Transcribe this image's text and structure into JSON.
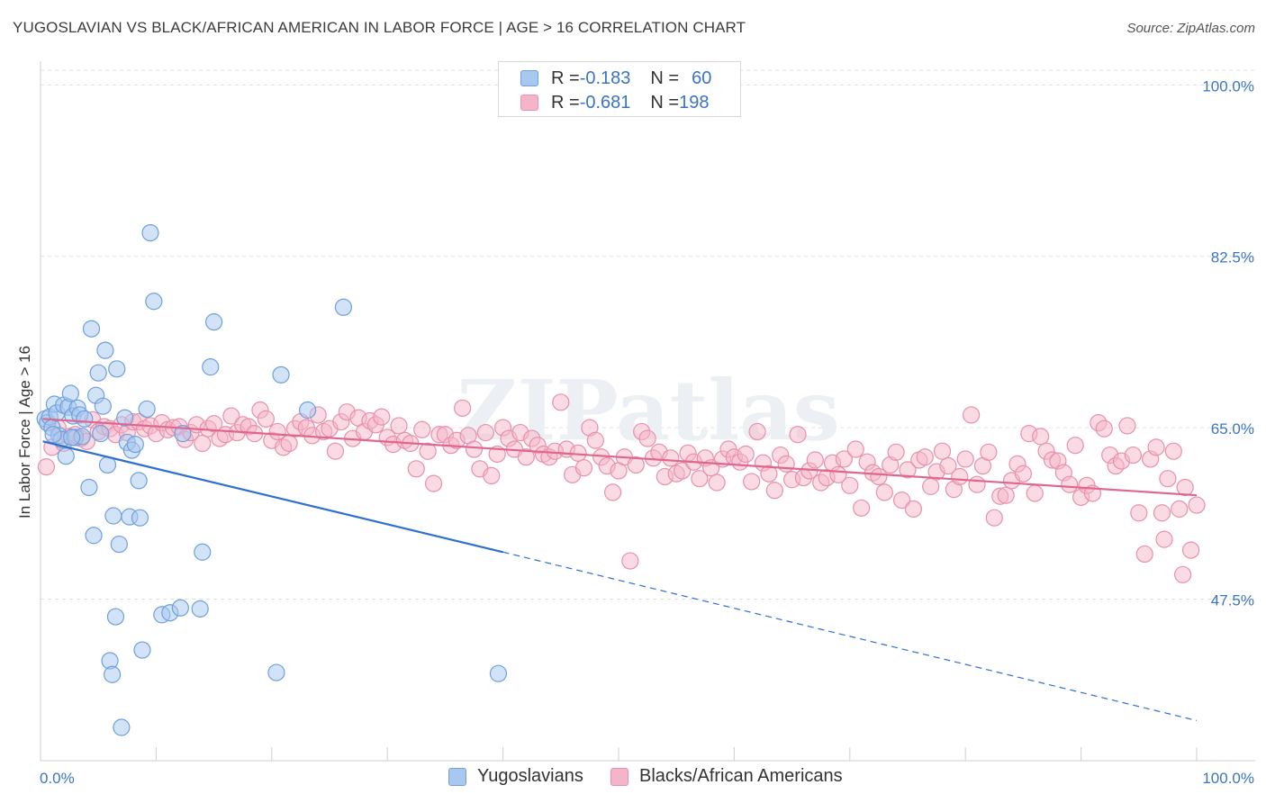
{
  "title": "YUGOSLAVIAN VS BLACK/AFRICAN AMERICAN IN LABOR FORCE | AGE > 16 CORRELATION CHART",
  "source": "Source: ZipAtlas.com",
  "watermark": "ZIPatlas",
  "legend_box": {
    "rows": [
      {
        "r_label": "R = ",
        "r_value": "-0.183",
        "n_label": "N = ",
        "n_value": "60",
        "color": "#a8c8ef"
      },
      {
        "r_label": "R = ",
        "r_value": "-0.681",
        "n_label": "N = ",
        "n_value": "198",
        "color": "#f5b5c8"
      }
    ]
  },
  "bottom_legend": [
    {
      "label": "Yugoslavians",
      "color": "#a8c8ef"
    },
    {
      "label": "Blacks/African Americans",
      "color": "#f5b5c8"
    }
  ],
  "colors": {
    "blue_fill": "#a8c8ef",
    "blue_stroke": "#6ea0dc",
    "blue_line": "#2e6fd0",
    "pink_fill": "#f5b5c8",
    "pink_stroke": "#e890ad",
    "pink_line": "#e0668f",
    "tick_label": "#3a74c4",
    "grid": "#e2e2e2"
  },
  "chart_data": {
    "type": "scatter",
    "title": "YUGOSLAVIAN VS BLACK/AFRICAN AMERICAN IN LABOR FORCE | AGE > 16 CORRELATION CHART",
    "xlabel": "",
    "ylabel": "In Labor Force | Age > 16",
    "xlim": [
      0,
      100
    ],
    "ylim": [
      31,
      101.5
    ],
    "x_tick_labels": [
      "0.0%",
      "100.0%"
    ],
    "y_ticks": [
      47.5,
      65.0,
      82.5,
      100.0
    ],
    "y_tick_labels": [
      "47.5%",
      "65.0%",
      "82.5%",
      "100.0%"
    ],
    "grid": true,
    "legend_position": "top-center",
    "series": [
      {
        "name": "Yugoslavians",
        "r": -0.183,
        "n": 60,
        "trend": {
          "x0": 0.2,
          "y0": 63.6,
          "x1_solid": 40,
          "y1_solid": 52.3,
          "x1_dashed": 100,
          "y1_dashed": 35.1
        },
        "points": [
          [
            0.4,
            65.9
          ],
          [
            0.6,
            65.5
          ],
          [
            0.8,
            66.1
          ],
          [
            1.0,
            65.0
          ],
          [
            1.2,
            67.4
          ],
          [
            1.4,
            66.5
          ],
          [
            1.6,
            64.2
          ],
          [
            1.8,
            63.8
          ],
          [
            2.0,
            67.3
          ],
          [
            2.2,
            62.1
          ],
          [
            2.4,
            67.1
          ],
          [
            2.6,
            68.5
          ],
          [
            2.8,
            66.2
          ],
          [
            3.0,
            64.0
          ],
          [
            3.2,
            67.0
          ],
          [
            3.4,
            66.3
          ],
          [
            3.6,
            64.1
          ],
          [
            3.8,
            65.9
          ],
          [
            4.2,
            58.9
          ],
          [
            4.4,
            75.1
          ],
          [
            4.6,
            54.0
          ],
          [
            4.8,
            68.3
          ],
          [
            5.0,
            70.6
          ],
          [
            5.2,
            64.4
          ],
          [
            5.4,
            67.2
          ],
          [
            5.6,
            72.9
          ],
          [
            5.8,
            61.2
          ],
          [
            6.0,
            41.2
          ],
          [
            6.2,
            39.8
          ],
          [
            6.3,
            56.0
          ],
          [
            6.5,
            45.7
          ],
          [
            6.6,
            71.0
          ],
          [
            6.8,
            53.1
          ],
          [
            7.0,
            34.4
          ],
          [
            7.3,
            66.0
          ],
          [
            7.5,
            63.5
          ],
          [
            7.7,
            55.9
          ],
          [
            7.9,
            62.7
          ],
          [
            8.2,
            63.3
          ],
          [
            8.5,
            59.6
          ],
          [
            8.6,
            55.8
          ],
          [
            8.8,
            42.3
          ],
          [
            9.2,
            66.9
          ],
          [
            9.5,
            84.9
          ],
          [
            9.8,
            77.9
          ],
          [
            10.5,
            45.9
          ],
          [
            11.2,
            46.1
          ],
          [
            12.1,
            46.6
          ],
          [
            12.3,
            64.4
          ],
          [
            13.8,
            46.5
          ],
          [
            14.0,
            52.3
          ],
          [
            14.7,
            71.2
          ],
          [
            15.0,
            75.8
          ],
          [
            20.4,
            40.0
          ],
          [
            20.8,
            70.4
          ],
          [
            23.1,
            66.8
          ],
          [
            26.2,
            77.3
          ],
          [
            39.6,
            39.9
          ],
          [
            1.1,
            64.3
          ],
          [
            2.7,
            64.0
          ]
        ]
      },
      {
        "name": "Blacks/African Americans",
        "r": -0.681,
        "n": 198,
        "trend": {
          "x0": 0.2,
          "y0": 65.9,
          "x1": 100,
          "y1": 58.1
        },
        "points": [
          [
            0.5,
            61.0
          ],
          [
            1.0,
            63.0
          ],
          [
            1.5,
            65.0
          ],
          [
            2.0,
            63.4
          ],
          [
            2.5,
            64.1
          ],
          [
            3.0,
            64.3
          ],
          [
            3.5,
            63.9
          ],
          [
            4.0,
            63.6
          ],
          [
            4.5,
            65.8
          ],
          [
            5.0,
            64.6
          ],
          [
            5.5,
            65.1
          ],
          [
            6.0,
            64.9
          ],
          [
            6.5,
            64.3
          ],
          [
            7.0,
            65.3
          ],
          [
            7.5,
            64.5
          ],
          [
            8.0,
            65.6
          ],
          [
            8.5,
            65.6
          ],
          [
            9.0,
            64.9
          ],
          [
            9.5,
            65.2
          ],
          [
            10.0,
            64.4
          ],
          [
            10.5,
            65.5
          ],
          [
            11.0,
            64.8
          ],
          [
            11.5,
            65.0
          ],
          [
            12.0,
            65.1
          ],
          [
            12.5,
            63.8
          ],
          [
            13.0,
            64.5
          ],
          [
            13.5,
            65.3
          ],
          [
            14.0,
            63.4
          ],
          [
            14.5,
            64.9
          ],
          [
            15.0,
            65.4
          ],
          [
            15.5,
            63.9
          ],
          [
            16.0,
            64.3
          ],
          [
            16.5,
            66.2
          ],
          [
            17.0,
            64.5
          ],
          [
            17.5,
            65.3
          ],
          [
            18.0,
            65.1
          ],
          [
            18.5,
            64.4
          ],
          [
            19.0,
            66.8
          ],
          [
            19.5,
            65.9
          ],
          [
            20.0,
            63.7
          ],
          [
            20.5,
            64.6
          ],
          [
            21.0,
            63.0
          ],
          [
            21.5,
            63.4
          ],
          [
            22.0,
            64.9
          ],
          [
            22.5,
            65.6
          ],
          [
            23.0,
            65.0
          ],
          [
            23.5,
            64.2
          ],
          [
            24.0,
            66.3
          ],
          [
            24.5,
            64.6
          ],
          [
            25.0,
            64.9
          ],
          [
            25.5,
            62.6
          ],
          [
            26.0,
            65.6
          ],
          [
            26.5,
            66.6
          ],
          [
            27.0,
            63.9
          ],
          [
            27.5,
            66.0
          ],
          [
            28.0,
            64.6
          ],
          [
            28.5,
            65.7
          ],
          [
            29.0,
            65.3
          ],
          [
            29.5,
            66.1
          ],
          [
            30.0,
            64.0
          ],
          [
            30.5,
            63.3
          ],
          [
            31.0,
            65.2
          ],
          [
            31.5,
            63.7
          ],
          [
            32.0,
            63.4
          ],
          [
            32.5,
            60.8
          ],
          [
            33.0,
            64.8
          ],
          [
            33.5,
            62.6
          ],
          [
            34.0,
            59.3
          ],
          [
            34.5,
            64.3
          ],
          [
            35.0,
            64.3
          ],
          [
            35.5,
            63.2
          ],
          [
            36.0,
            63.7
          ],
          [
            36.5,
            67.0
          ],
          [
            37.0,
            64.2
          ],
          [
            37.5,
            62.8
          ],
          [
            38.0,
            60.8
          ],
          [
            38.5,
            64.5
          ],
          [
            39.0,
            60.1
          ],
          [
            39.5,
            62.3
          ],
          [
            40.0,
            65.0
          ],
          [
            40.5,
            63.9
          ],
          [
            41.0,
            62.8
          ],
          [
            41.5,
            64.5
          ],
          [
            42.0,
            62.0
          ],
          [
            42.5,
            63.9
          ],
          [
            43.0,
            63.2
          ],
          [
            43.5,
            62.3
          ],
          [
            44.0,
            62.0
          ],
          [
            44.5,
            62.6
          ],
          [
            45.0,
            67.6
          ],
          [
            45.5,
            62.8
          ],
          [
            46.0,
            60.2
          ],
          [
            46.5,
            62.4
          ],
          [
            47.0,
            60.9
          ],
          [
            47.5,
            65.0
          ],
          [
            48.0,
            63.7
          ],
          [
            48.5,
            62.0
          ],
          [
            49.0,
            61.1
          ],
          [
            49.5,
            58.4
          ],
          [
            50.0,
            60.6
          ],
          [
            50.5,
            62.0
          ],
          [
            51.0,
            51.4
          ],
          [
            51.5,
            61.2
          ],
          [
            52.0,
            64.6
          ],
          [
            52.5,
            63.9
          ],
          [
            53.0,
            61.9
          ],
          [
            53.5,
            62.5
          ],
          [
            54.0,
            60.0
          ],
          [
            54.5,
            61.9
          ],
          [
            55.0,
            60.3
          ],
          [
            55.5,
            60.6
          ],
          [
            56.0,
            62.4
          ],
          [
            56.5,
            61.5
          ],
          [
            57.0,
            59.8
          ],
          [
            57.5,
            61.9
          ],
          [
            58.0,
            60.9
          ],
          [
            58.5,
            59.4
          ],
          [
            59.0,
            61.8
          ],
          [
            59.5,
            62.8
          ],
          [
            60.0,
            62.0
          ],
          [
            60.5,
            61.5
          ],
          [
            61.0,
            62.3
          ],
          [
            61.5,
            59.5
          ],
          [
            62.0,
            64.6
          ],
          [
            62.5,
            61.4
          ],
          [
            63.0,
            60.3
          ],
          [
            63.5,
            58.6
          ],
          [
            64.0,
            62.2
          ],
          [
            64.5,
            61.3
          ],
          [
            65.0,
            59.7
          ],
          [
            65.5,
            64.3
          ],
          [
            66.0,
            59.9
          ],
          [
            66.5,
            60.6
          ],
          [
            67.0,
            61.7
          ],
          [
            67.5,
            59.4
          ],
          [
            68.0,
            59.9
          ],
          [
            68.5,
            61.4
          ],
          [
            69.0,
            60.2
          ],
          [
            69.5,
            61.8
          ],
          [
            70.0,
            59.1
          ],
          [
            70.5,
            62.8
          ],
          [
            71.0,
            56.8
          ],
          [
            71.5,
            61.5
          ],
          [
            72.0,
            60.4
          ],
          [
            72.5,
            60.0
          ],
          [
            73.0,
            58.4
          ],
          [
            73.5,
            61.2
          ],
          [
            74.0,
            62.5
          ],
          [
            74.5,
            57.6
          ],
          [
            75.0,
            60.7
          ],
          [
            75.5,
            56.7
          ],
          [
            76.0,
            61.7
          ],
          [
            76.5,
            62.0
          ],
          [
            77.0,
            59.0
          ],
          [
            77.5,
            60.5
          ],
          [
            78.0,
            62.6
          ],
          [
            78.5,
            61.1
          ],
          [
            79.0,
            58.7
          ],
          [
            79.5,
            60.0
          ],
          [
            80.0,
            61.8
          ],
          [
            80.5,
            66.3
          ],
          [
            81.0,
            59.2
          ],
          [
            81.5,
            61.1
          ],
          [
            82.0,
            62.5
          ],
          [
            82.5,
            55.8
          ],
          [
            83.0,
            58.0
          ],
          [
            83.5,
            58.1
          ],
          [
            84.0,
            59.6
          ],
          [
            84.5,
            61.3
          ],
          [
            85.0,
            60.3
          ],
          [
            85.5,
            64.4
          ],
          [
            86.0,
            58.3
          ],
          [
            86.5,
            64.1
          ],
          [
            87.0,
            62.6
          ],
          [
            87.5,
            61.7
          ],
          [
            88.0,
            61.6
          ],
          [
            88.5,
            60.4
          ],
          [
            89.0,
            59.2
          ],
          [
            89.5,
            63.2
          ],
          [
            90.0,
            57.9
          ],
          [
            90.5,
            59.1
          ],
          [
            91.0,
            58.3
          ],
          [
            91.5,
            65.5
          ],
          [
            92.0,
            64.9
          ],
          [
            92.5,
            62.2
          ],
          [
            93.0,
            61.1
          ],
          [
            93.5,
            61.6
          ],
          [
            94.0,
            65.2
          ],
          [
            94.5,
            62.2
          ],
          [
            95.0,
            56.3
          ],
          [
            95.5,
            52.1
          ],
          [
            96.0,
            61.8
          ],
          [
            96.5,
            63.0
          ],
          [
            97.0,
            56.3
          ],
          [
            97.5,
            59.8
          ],
          [
            98.0,
            62.6
          ],
          [
            98.5,
            56.7
          ],
          [
            99.0,
            58.9
          ],
          [
            99.5,
            52.5
          ],
          [
            100.0,
            57.1
          ],
          [
            97.2,
            53.6
          ],
          [
            98.8,
            50.0
          ]
        ]
      }
    ]
  }
}
